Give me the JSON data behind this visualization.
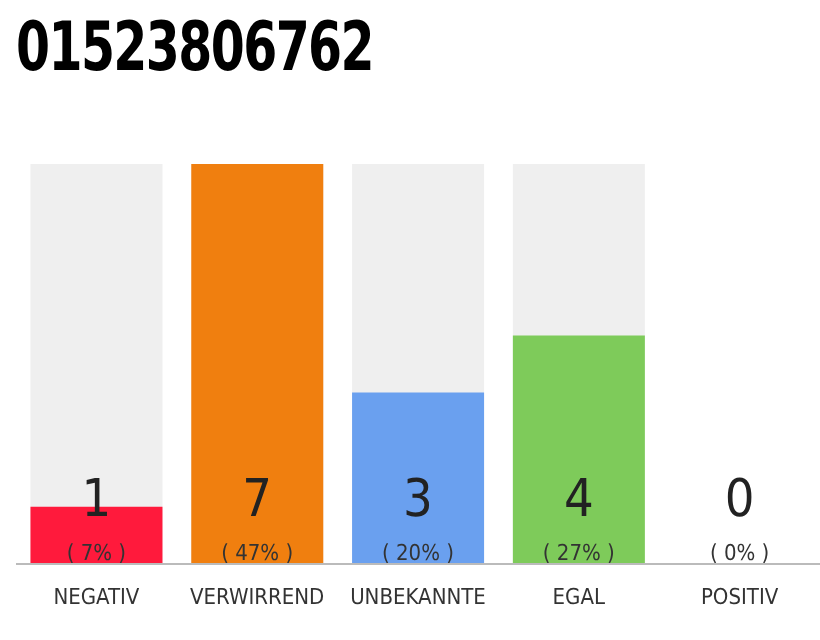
{
  "chart_data": {
    "type": "bar",
    "title": "01523806762",
    "categories": [
      "NEGATIV",
      "VERWIRREND",
      "UNBEKANNTE",
      "EGAL",
      "POSITIV"
    ],
    "values": [
      1,
      7,
      3,
      4,
      0
    ],
    "colors": [
      "#ff1a3c",
      "#f07f0f",
      "#6aa0ef",
      "#7ecb5a",
      "#d9d9d9"
    ],
    "ylim": [
      0,
      7
    ],
    "data_labels": true,
    "tick_labels": "x",
    "grid": false,
    "legend": false,
    "annotations": [
      "( 7% )",
      "( 47% )",
      "( 20% )",
      "( 27% )",
      "( 0% )"
    ]
  }
}
